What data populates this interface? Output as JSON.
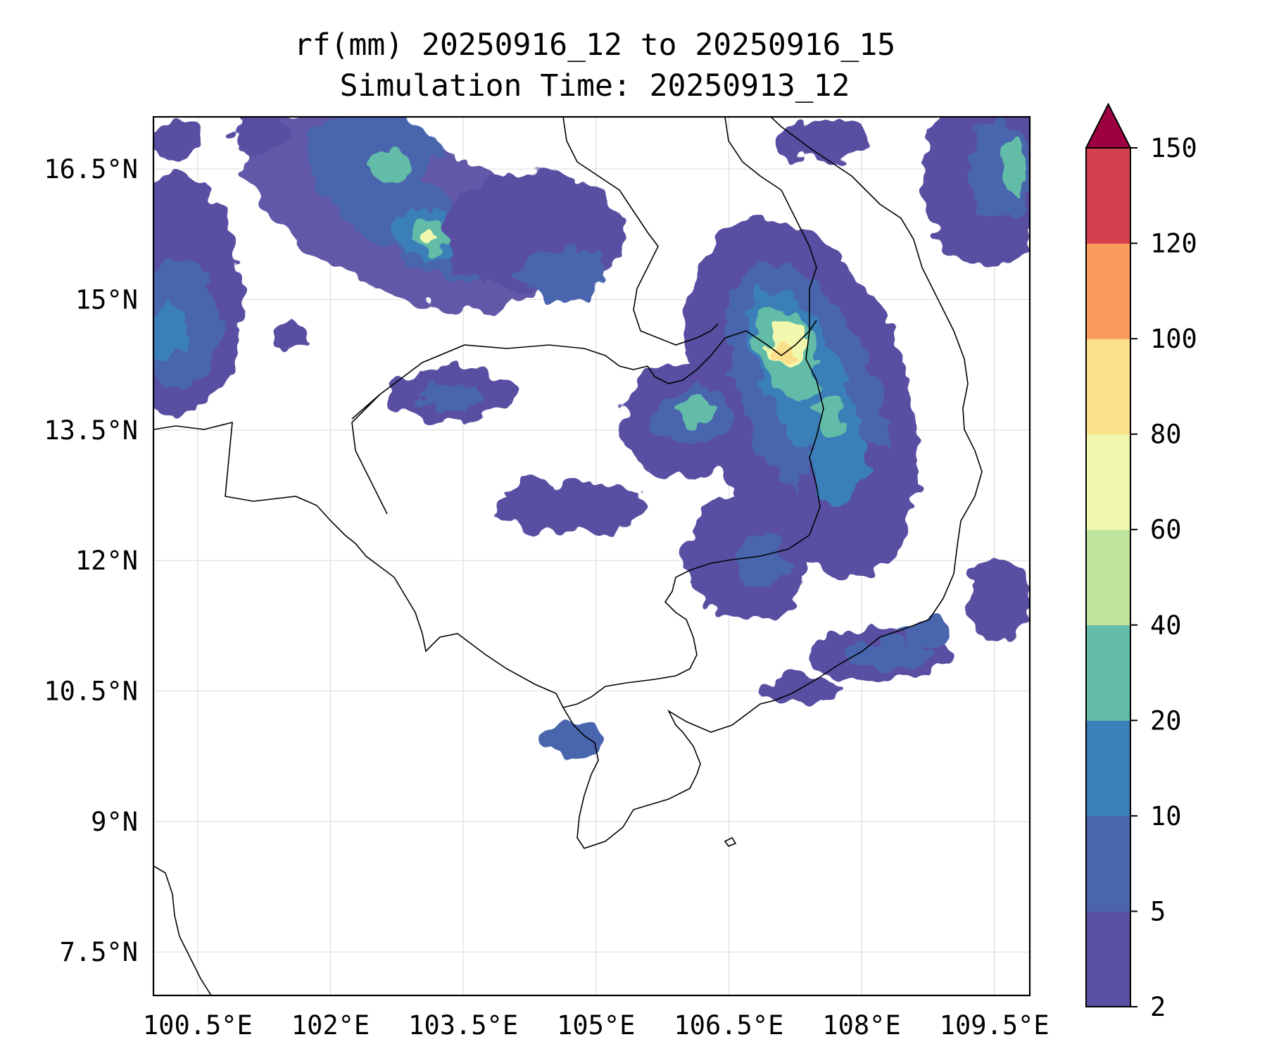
{
  "title": {
    "line1": "rf(mm) 20250916_12 to 20250916_15",
    "line2": "Simulation Time: 20250913_12"
  },
  "map": {
    "lon_range": [
      100.0,
      109.9
    ],
    "lat_range": [
      7.0,
      17.1
    ],
    "lon_ticks": [
      100.5,
      102,
      103.5,
      105,
      106.5,
      108,
      109.5
    ],
    "lon_tick_labels": [
      "100.5°E",
      "102°E",
      "103.5°E",
      "105°E",
      "106.5°E",
      "108°E",
      "109.5°E"
    ],
    "lat_ticks": [
      7.5,
      9,
      10.5,
      12,
      13.5,
      15,
      16.5
    ],
    "lat_tick_labels": [
      "7.5°N",
      "9°N",
      "10.5°N",
      "12°N",
      "13.5°N",
      "15°N",
      "16.5°N"
    ],
    "gridlines": true
  },
  "colorbar": {
    "levels": [
      2,
      5,
      10,
      20,
      40,
      60,
      80,
      100,
      120,
      150
    ],
    "level_labels": [
      "2",
      "5",
      "10",
      "20",
      "40",
      "60",
      "80",
      "100",
      "120",
      "150"
    ],
    "colors": [
      "#5850a3",
      "#4a65ae",
      "#3a7fb9",
      "#62bca8",
      "#bde39d",
      "#f1f8ad",
      "#fbdf8a",
      "#f99c5b",
      "#d4404e"
    ],
    "extend_color": "#9e0142",
    "extend": "max"
  },
  "rainfall_regions": [
    {
      "lon": 103.4,
      "lat": 15.6,
      "peak_mm": 65
    },
    {
      "lon": 107.3,
      "lat": 14.2,
      "peak_mm": 85
    },
    {
      "lon": 106.3,
      "lat": 13.7,
      "peak_mm": 30
    },
    {
      "lon": 107.7,
      "lat": 13.3,
      "peak_mm": 25
    },
    {
      "lon": 109.4,
      "lat": 16.1,
      "peak_mm": 30
    }
  ]
}
